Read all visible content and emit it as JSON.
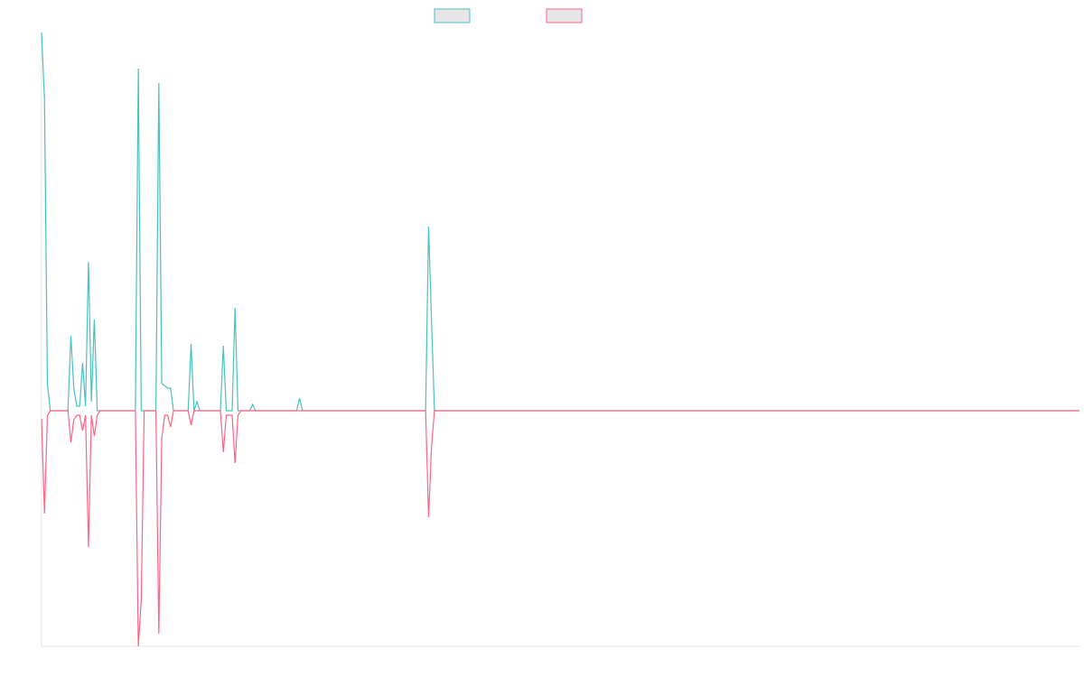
{
  "chart_data": {
    "type": "line",
    "xlim": [
      0,
      354
    ],
    "ylim": [
      -261,
      419
    ],
    "series": [
      {
        "color": "#4bc0c0",
        "x": [
          0,
          1,
          2,
          3,
          9,
          10,
          11,
          12,
          13,
          14,
          15,
          16,
          17,
          18,
          19,
          32,
          33,
          34,
          39,
          40,
          41,
          43,
          44,
          45,
          50,
          51,
          52,
          53,
          54,
          61,
          62,
          63,
          65,
          66,
          67,
          71,
          72,
          73,
          87,
          88,
          89,
          131,
          132,
          133,
          134,
          354
        ],
        "values": [
          419,
          345,
          30,
          0,
          0,
          83,
          25,
          5,
          5,
          53,
          5,
          165,
          10,
          101,
          0,
          0,
          379,
          0,
          0,
          363,
          30,
          25,
          25,
          0,
          0,
          74,
          0,
          10,
          0,
          0,
          72,
          0,
          0,
          114,
          0,
          0,
          7,
          0,
          0,
          14,
          0,
          0,
          204,
          100,
          0,
          0
        ]
      },
      {
        "color": "#ff6384",
        "x": [
          0,
          1,
          2,
          3,
          9,
          10,
          11,
          12,
          13,
          14,
          15,
          16,
          17,
          18,
          19,
          20,
          32,
          33,
          34,
          35,
          39,
          40,
          41,
          42,
          43,
          44,
          45,
          50,
          51,
          52,
          61,
          62,
          63,
          64,
          65,
          66,
          67,
          68,
          131,
          132,
          133,
          134,
          354
        ],
        "values": [
          -9,
          -114,
          -5,
          0,
          0,
          -35,
          -10,
          -5,
          -5,
          -22,
          -5,
          -151,
          -5,
          -28,
          -5,
          0,
          0,
          -261,
          -210,
          0,
          0,
          -247,
          -30,
          -5,
          -5,
          -18,
          0,
          0,
          -16,
          0,
          0,
          -46,
          -5,
          -5,
          -5,
          -58,
          -5,
          0,
          0,
          -118,
          -40,
          0,
          0
        ]
      }
    ]
  }
}
